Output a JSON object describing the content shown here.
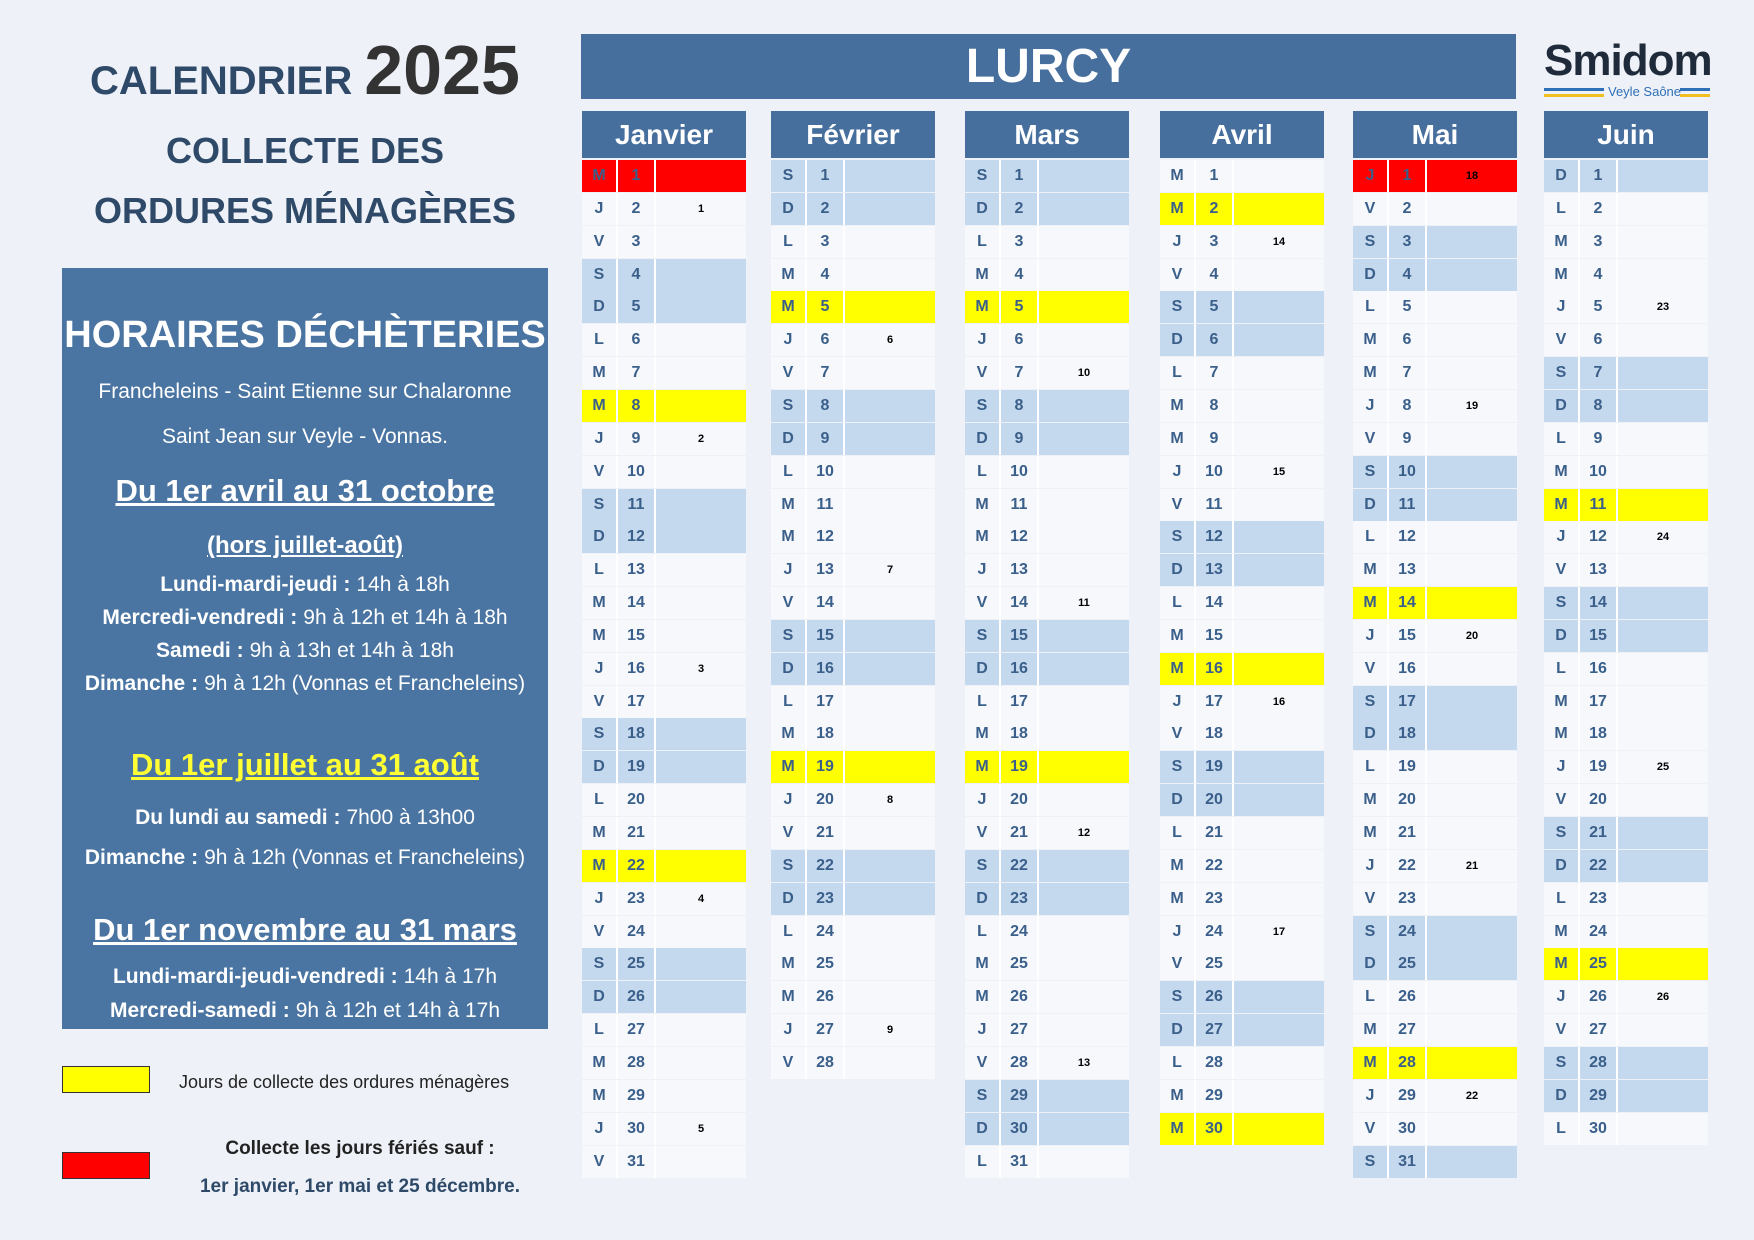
{
  "header": {
    "title": "CALENDRIER",
    "year": "2025",
    "subtitle": [
      "COLLECTE DES",
      "ORDURES MÉNAGÈRES"
    ],
    "commune": "LURCY",
    "logo": "Smidom",
    "logo_sub": "Veyle Saône"
  },
  "horaires": {
    "title": "HORAIRES DÉCHÈTERIES",
    "sites": [
      "Francheleins - Saint Etienne sur Chalaronne",
      "Saint Jean sur Veyle - Vonnas."
    ],
    "periods": [
      {
        "title": "Du 1er avril au 31 octobre",
        "color": "#ffffff",
        "note": "(hors juillet-août)",
        "lines": [
          {
            "label": "Lundi-mardi-jeudi :",
            "hours": "14h à 18h"
          },
          {
            "label": "Mercredi-vendredi :",
            "hours": "9h à 12h et 14h à 18h"
          },
          {
            "label": "Samedi :",
            "hours": "9h à 13h et 14h à 18h"
          },
          {
            "label": "Dimanche :",
            "hours": "9h à 12h (Vonnas et Francheleins)"
          }
        ]
      },
      {
        "title": "Du 1er juillet au 31 août",
        "color": "#ffff33",
        "lines": [
          {
            "label": "Du lundi au samedi :",
            "hours": "7h00 à 13h00"
          },
          {
            "label": "Dimanche :",
            "hours": "9h à 12h (Vonnas et Francheleins)"
          }
        ]
      },
      {
        "title": "Du 1er novembre au 31 mars",
        "color": "#ffffff",
        "lines": [
          {
            "label": "Lundi-mardi-jeudi-vendredi :",
            "hours": "14h à 17h"
          },
          {
            "label": "Mercredi-samedi :",
            "hours": "9h à 12h et 14h à 17h"
          }
        ]
      }
    ]
  },
  "legend": {
    "collecte": {
      "color": "#ffff00",
      "text": "Jours de collecte des ordures ménagères"
    },
    "ferie": {
      "color": "#ff0000",
      "text": "Collecte les jours fériés sauf :",
      "detail": "1er janvier, 1er mai et 25 décembre."
    }
  },
  "months": [
    {
      "name": "Janvier",
      "days": [
        [
          "M",
          1,
          null,
          "#ff0000"
        ],
        [
          "J",
          2,
          1,
          null
        ],
        [
          "V",
          3,
          null,
          null
        ],
        [
          "S",
          4,
          null,
          "#c5d9ee"
        ],
        [
          "D",
          5,
          null,
          "#c5d9ee"
        ],
        [
          "L",
          6,
          null,
          null
        ],
        [
          "M",
          7,
          null,
          null
        ],
        [
          "M",
          8,
          null,
          "#ffff00"
        ],
        [
          "J",
          9,
          2,
          null
        ],
        [
          "V",
          10,
          null,
          null
        ],
        [
          "S",
          11,
          null,
          "#c5d9ee"
        ],
        [
          "D",
          12,
          null,
          "#c5d9ee"
        ],
        [
          "L",
          13,
          null,
          null
        ],
        [
          "M",
          14,
          null,
          null
        ],
        [
          "M",
          15,
          null,
          null
        ],
        [
          "J",
          16,
          3,
          null
        ],
        [
          "V",
          17,
          null,
          null
        ],
        [
          "S",
          18,
          null,
          "#c5d9ee"
        ],
        [
          "D",
          19,
          null,
          "#c5d9ee"
        ],
        [
          "L",
          20,
          null,
          null
        ],
        [
          "M",
          21,
          null,
          null
        ],
        [
          "M",
          22,
          null,
          "#ffff00"
        ],
        [
          "J",
          23,
          4,
          null
        ],
        [
          "V",
          24,
          null,
          null
        ],
        [
          "S",
          25,
          null,
          "#c5d9ee"
        ],
        [
          "D",
          26,
          null,
          "#c5d9ee"
        ],
        [
          "L",
          27,
          null,
          null
        ],
        [
          "M",
          28,
          null,
          null
        ],
        [
          "M",
          29,
          null,
          null
        ],
        [
          "J",
          30,
          5,
          null
        ],
        [
          "V",
          31,
          null,
          null
        ]
      ]
    },
    {
      "name": "Février",
      "days": [
        [
          "S",
          1,
          null,
          "#c5d9ee"
        ],
        [
          "D",
          2,
          null,
          "#c5d9ee"
        ],
        [
          "L",
          3,
          null,
          null
        ],
        [
          "M",
          4,
          null,
          null
        ],
        [
          "M",
          5,
          null,
          "#ffff00"
        ],
        [
          "J",
          6,
          6,
          null
        ],
        [
          "V",
          7,
          null,
          null
        ],
        [
          "S",
          8,
          null,
          "#c5d9ee"
        ],
        [
          "D",
          9,
          null,
          "#c5d9ee"
        ],
        [
          "L",
          10,
          null,
          null
        ],
        [
          "M",
          11,
          null,
          null
        ],
        [
          "M",
          12,
          null,
          null
        ],
        [
          "J",
          13,
          7,
          null
        ],
        [
          "V",
          14,
          null,
          null
        ],
        [
          "S",
          15,
          null,
          "#c5d9ee"
        ],
        [
          "D",
          16,
          null,
          "#c5d9ee"
        ],
        [
          "L",
          17,
          null,
          null
        ],
        [
          "M",
          18,
          null,
          null
        ],
        [
          "M",
          19,
          null,
          "#ffff00"
        ],
        [
          "J",
          20,
          8,
          null
        ],
        [
          "V",
          21,
          null,
          null
        ],
        [
          "S",
          22,
          null,
          "#c5d9ee"
        ],
        [
          "D",
          23,
          null,
          "#c5d9ee"
        ],
        [
          "L",
          24,
          null,
          null
        ],
        [
          "M",
          25,
          null,
          null
        ],
        [
          "M",
          26,
          null,
          null
        ],
        [
          "J",
          27,
          9,
          null
        ],
        [
          "V",
          28,
          null,
          null
        ]
      ]
    },
    {
      "name": "Mars",
      "days": [
        [
          "S",
          1,
          null,
          "#c5d9ee"
        ],
        [
          "D",
          2,
          null,
          "#c5d9ee"
        ],
        [
          "L",
          3,
          null,
          null
        ],
        [
          "M",
          4,
          null,
          null
        ],
        [
          "M",
          5,
          null,
          "#ffff00"
        ],
        [
          "J",
          6,
          null,
          null
        ],
        [
          "V",
          7,
          10,
          null
        ],
        [
          "S",
          8,
          null,
          "#c5d9ee"
        ],
        [
          "D",
          9,
          null,
          "#c5d9ee"
        ],
        [
          "L",
          10,
          null,
          null
        ],
        [
          "M",
          11,
          null,
          null
        ],
        [
          "M",
          12,
          null,
          null
        ],
        [
          "J",
          13,
          null,
          null
        ],
        [
          "V",
          14,
          11,
          null
        ],
        [
          "S",
          15,
          null,
          "#c5d9ee"
        ],
        [
          "D",
          16,
          null,
          "#c5d9ee"
        ],
        [
          "L",
          17,
          null,
          null
        ],
        [
          "M",
          18,
          null,
          null
        ],
        [
          "M",
          19,
          null,
          "#ffff00"
        ],
        [
          "J",
          20,
          null,
          null
        ],
        [
          "V",
          21,
          12,
          null
        ],
        [
          "S",
          22,
          null,
          "#c5d9ee"
        ],
        [
          "D",
          23,
          null,
          "#c5d9ee"
        ],
        [
          "L",
          24,
          null,
          null
        ],
        [
          "M",
          25,
          null,
          null
        ],
        [
          "M",
          26,
          null,
          null
        ],
        [
          "J",
          27,
          null,
          null
        ],
        [
          "V",
          28,
          13,
          null
        ],
        [
          "S",
          29,
          null,
          "#c5d9ee"
        ],
        [
          "D",
          30,
          null,
          "#c5d9ee"
        ],
        [
          "L",
          31,
          null,
          null
        ]
      ]
    },
    {
      "name": "Avril",
      "days": [
        [
          "M",
          1,
          null,
          null
        ],
        [
          "M",
          2,
          null,
          "#ffff00"
        ],
        [
          "J",
          3,
          14,
          null
        ],
        [
          "V",
          4,
          null,
          null
        ],
        [
          "S",
          5,
          null,
          "#c5d9ee"
        ],
        [
          "D",
          6,
          null,
          "#c5d9ee"
        ],
        [
          "L",
          7,
          null,
          null
        ],
        [
          "M",
          8,
          null,
          null
        ],
        [
          "M",
          9,
          null,
          null
        ],
        [
          "J",
          10,
          15,
          null
        ],
        [
          "V",
          11,
          null,
          null
        ],
        [
          "S",
          12,
          null,
          "#c5d9ee"
        ],
        [
          "D",
          13,
          null,
          "#c5d9ee"
        ],
        [
          "L",
          14,
          null,
          null
        ],
        [
          "M",
          15,
          null,
          null
        ],
        [
          "M",
          16,
          null,
          "#ffff00"
        ],
        [
          "J",
          17,
          16,
          null
        ],
        [
          "V",
          18,
          null,
          null
        ],
        [
          "S",
          19,
          null,
          "#c5d9ee"
        ],
        [
          "D",
          20,
          null,
          "#c5d9ee"
        ],
        [
          "L",
          21,
          null,
          null
        ],
        [
          "M",
          22,
          null,
          null
        ],
        [
          "M",
          23,
          null,
          null
        ],
        [
          "J",
          24,
          17,
          null
        ],
        [
          "V",
          25,
          null,
          null
        ],
        [
          "S",
          26,
          null,
          "#c5d9ee"
        ],
        [
          "D",
          27,
          null,
          "#c5d9ee"
        ],
        [
          "L",
          28,
          null,
          null
        ],
        [
          "M",
          29,
          null,
          null
        ],
        [
          "M",
          30,
          null,
          "#ffff00"
        ]
      ]
    },
    {
      "name": "Mai",
      "days": [
        [
          "J",
          1,
          18,
          "#ff0000"
        ],
        [
          "V",
          2,
          null,
          null
        ],
        [
          "S",
          3,
          null,
          "#c5d9ee"
        ],
        [
          "D",
          4,
          null,
          "#c5d9ee"
        ],
        [
          "L",
          5,
          null,
          null
        ],
        [
          "M",
          6,
          null,
          null
        ],
        [
          "M",
          7,
          null,
          null
        ],
        [
          "J",
          8,
          19,
          null
        ],
        [
          "V",
          9,
          null,
          null
        ],
        [
          "S",
          10,
          null,
          "#c5d9ee"
        ],
        [
          "D",
          11,
          null,
          "#c5d9ee"
        ],
        [
          "L",
          12,
          null,
          null
        ],
        [
          "M",
          13,
          null,
          null
        ],
        [
          "M",
          14,
          null,
          "#ffff00"
        ],
        [
          "J",
          15,
          20,
          null
        ],
        [
          "V",
          16,
          null,
          null
        ],
        [
          "S",
          17,
          null,
          "#c5d9ee"
        ],
        [
          "D",
          18,
          null,
          "#c5d9ee"
        ],
        [
          "L",
          19,
          null,
          null
        ],
        [
          "M",
          20,
          null,
          null
        ],
        [
          "M",
          21,
          null,
          null
        ],
        [
          "J",
          22,
          21,
          null
        ],
        [
          "V",
          23,
          null,
          null
        ],
        [
          "S",
          24,
          null,
          "#c5d9ee"
        ],
        [
          "D",
          25,
          null,
          "#c5d9ee"
        ],
        [
          "L",
          26,
          null,
          null
        ],
        [
          "M",
          27,
          null,
          null
        ],
        [
          "M",
          28,
          null,
          "#ffff00"
        ],
        [
          "J",
          29,
          22,
          null
        ],
        [
          "V",
          30,
          null,
          null
        ],
        [
          "S",
          31,
          null,
          "#c5d9ee"
        ]
      ]
    },
    {
      "name": "Juin",
      "days": [
        [
          "D",
          1,
          null,
          "#c5d9ee"
        ],
        [
          "L",
          2,
          null,
          null
        ],
        [
          "M",
          3,
          null,
          null
        ],
        [
          "M",
          4,
          null,
          null
        ],
        [
          "J",
          5,
          23,
          null
        ],
        [
          "V",
          6,
          null,
          null
        ],
        [
          "S",
          7,
          null,
          "#c5d9ee"
        ],
        [
          "D",
          8,
          null,
          "#c5d9ee"
        ],
        [
          "L",
          9,
          null,
          null
        ],
        [
          "M",
          10,
          null,
          null
        ],
        [
          "M",
          11,
          null,
          "#ffff00"
        ],
        [
          "J",
          12,
          24,
          null
        ],
        [
          "V",
          13,
          null,
          null
        ],
        [
          "S",
          14,
          null,
          "#c5d9ee"
        ],
        [
          "D",
          15,
          null,
          "#c5d9ee"
        ],
        [
          "L",
          16,
          null,
          null
        ],
        [
          "M",
          17,
          null,
          null
        ],
        [
          "M",
          18,
          null,
          null
        ],
        [
          "J",
          19,
          25,
          null
        ],
        [
          "V",
          20,
          null,
          null
        ],
        [
          "S",
          21,
          null,
          "#c5d9ee"
        ],
        [
          "D",
          22,
          null,
          "#c5d9ee"
        ],
        [
          "L",
          23,
          null,
          null
        ],
        [
          "M",
          24,
          null,
          null
        ],
        [
          "M",
          25,
          null,
          "#ffff00"
        ],
        [
          "J",
          26,
          26,
          null
        ],
        [
          "V",
          27,
          null,
          null
        ],
        [
          "S",
          28,
          null,
          "#c5d9ee"
        ],
        [
          "D",
          29,
          null,
          "#c5d9ee"
        ],
        [
          "L",
          30,
          null,
          null
        ]
      ]
    }
  ]
}
